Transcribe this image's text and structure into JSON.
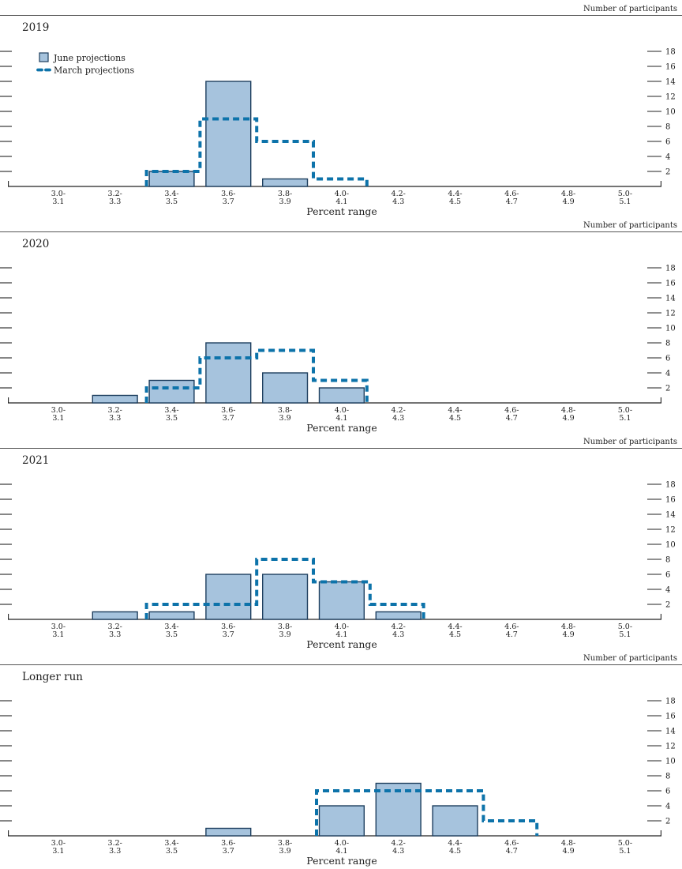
{
  "colors": {
    "june_bar_fill": "#a6c3dd",
    "june_bar_stroke": "#1d3e5e",
    "march_line": "#0d73aa",
    "axis": "#222222"
  },
  "chart_data": [
    {
      "type": "bar",
      "title": "2019",
      "ylabel": "Number of participants",
      "xlabel": "Percent range",
      "ylim": [
        0,
        19
      ],
      "yticks": [
        2,
        4,
        6,
        8,
        10,
        12,
        14,
        16,
        18
      ],
      "grid": false,
      "legend_position": "top-left",
      "categories": [
        [
          "3.0-",
          "3.1"
        ],
        [
          "3.2-",
          "3.3"
        ],
        [
          "3.4-",
          "3.5"
        ],
        [
          "3.6-",
          "3.7"
        ],
        [
          "3.8-",
          "3.9"
        ],
        [
          "4.0-",
          "4.1"
        ],
        [
          "4.2-",
          "4.3"
        ],
        [
          "4.4-",
          "4.5"
        ],
        [
          "4.6-",
          "4.7"
        ],
        [
          "4.8-",
          "4.9"
        ],
        [
          "5.0-",
          "5.1"
        ]
      ],
      "series": {
        "june": [
          0,
          0,
          2,
          14,
          1,
          0,
          0,
          0,
          0,
          0,
          0
        ],
        "march": [
          0,
          0,
          2,
          9,
          6,
          1,
          0,
          0,
          0,
          0,
          0
        ]
      },
      "legend": {
        "june": "June projections",
        "march": "March projections"
      }
    },
    {
      "type": "bar",
      "title": "2020",
      "ylabel": "Number of participants",
      "xlabel": "Percent range",
      "ylim": [
        0,
        19
      ],
      "yticks": [
        2,
        4,
        6,
        8,
        10,
        12,
        14,
        16,
        18
      ],
      "grid": false,
      "categories": [
        [
          "3.0-",
          "3.1"
        ],
        [
          "3.2-",
          "3.3"
        ],
        [
          "3.4-",
          "3.5"
        ],
        [
          "3.6-",
          "3.7"
        ],
        [
          "3.8-",
          "3.9"
        ],
        [
          "4.0-",
          "4.1"
        ],
        [
          "4.2-",
          "4.3"
        ],
        [
          "4.4-",
          "4.5"
        ],
        [
          "4.6-",
          "4.7"
        ],
        [
          "4.8-",
          "4.9"
        ],
        [
          "5.0-",
          "5.1"
        ]
      ],
      "series": {
        "june": [
          0,
          1,
          3,
          8,
          4,
          2,
          0,
          0,
          0,
          0,
          0
        ],
        "march": [
          0,
          0,
          2,
          6,
          7,
          3,
          0,
          0,
          0,
          0,
          0
        ]
      }
    },
    {
      "type": "bar",
      "title": "2021",
      "ylabel": "Number of participants",
      "xlabel": "Percent range",
      "ylim": [
        0,
        19
      ],
      "yticks": [
        2,
        4,
        6,
        8,
        10,
        12,
        14,
        16,
        18
      ],
      "grid": false,
      "categories": [
        [
          "3.0-",
          "3.1"
        ],
        [
          "3.2-",
          "3.3"
        ],
        [
          "3.4-",
          "3.5"
        ],
        [
          "3.6-",
          "3.7"
        ],
        [
          "3.8-",
          "3.9"
        ],
        [
          "4.0-",
          "4.1"
        ],
        [
          "4.2-",
          "4.3"
        ],
        [
          "4.4-",
          "4.5"
        ],
        [
          "4.6-",
          "4.7"
        ],
        [
          "4.8-",
          "4.9"
        ],
        [
          "5.0-",
          "5.1"
        ]
      ],
      "series": {
        "june": [
          0,
          1,
          1,
          6,
          6,
          5,
          1,
          0,
          0,
          0,
          0
        ],
        "march": [
          0,
          0,
          2,
          2,
          8,
          5,
          2,
          0,
          0,
          0,
          0
        ]
      }
    },
    {
      "type": "bar",
      "title": "Longer run",
      "ylabel": "Number of participants",
      "xlabel": "Percent range",
      "ylim": [
        0,
        19
      ],
      "yticks": [
        2,
        4,
        6,
        8,
        10,
        12,
        14,
        16,
        18
      ],
      "grid": false,
      "categories": [
        [
          "3.0-",
          "3.1"
        ],
        [
          "3.2-",
          "3.3"
        ],
        [
          "3.4-",
          "3.5"
        ],
        [
          "3.6-",
          "3.7"
        ],
        [
          "3.8-",
          "3.9"
        ],
        [
          "4.0-",
          "4.1"
        ],
        [
          "4.2-",
          "4.3"
        ],
        [
          "4.4-",
          "4.5"
        ],
        [
          "4.6-",
          "4.7"
        ],
        [
          "4.8-",
          "4.9"
        ],
        [
          "5.0-",
          "5.1"
        ]
      ],
      "series": {
        "june": [
          0,
          0,
          0,
          1,
          0,
          4,
          7,
          4,
          0,
          0,
          0
        ],
        "march": [
          0,
          0,
          0,
          0,
          0,
          6,
          6,
          6,
          2,
          0,
          0
        ]
      }
    }
  ]
}
